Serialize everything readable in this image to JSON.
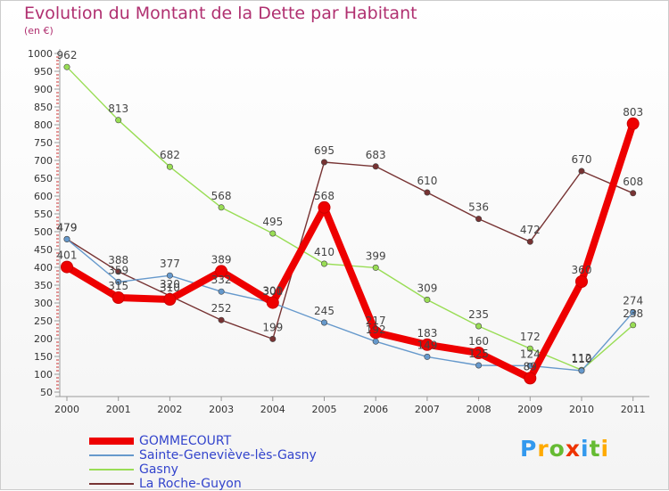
{
  "chart_data": {
    "type": "line",
    "title": "Evolution du Montant de la Dette par Habitant",
    "subtitle": "(en €)",
    "x": [
      "2000",
      "2001",
      "2002",
      "2003",
      "2004",
      "2005",
      "2006",
      "2007",
      "2008",
      "2009",
      "2010",
      "2011"
    ],
    "ylim": [
      50,
      1000
    ],
    "yticks": [
      50,
      100,
      150,
      200,
      250,
      300,
      350,
      400,
      450,
      500,
      550,
      600,
      650,
      700,
      750,
      800,
      850,
      900,
      950,
      1000
    ],
    "grid": false,
    "legend_position": "bottom-left",
    "series": [
      {
        "name": "GOMMECOURT",
        "color": "#ee0000",
        "values": [
          401,
          315,
          310,
          389,
          301,
          568,
          217,
          183,
          160,
          89,
          360,
          803
        ],
        "labels": [
          "401",
          "315",
          "310",
          "389",
          "301",
          "568",
          "217",
          "183",
          "160",
          "89",
          "360",
          "803"
        ]
      },
      {
        "name": "Sainte-Geneviève-lès-Gasny",
        "color": "#6699cc",
        "values": [
          479,
          359,
          377,
          332,
          300,
          245,
          192,
          149,
          125,
          124,
          110,
          274
        ],
        "labels": [
          "479",
          "359",
          "377",
          "332",
          "300",
          "245",
          "192",
          "149",
          "125",
          "124",
          "110",
          "274"
        ]
      },
      {
        "name": "Gasny",
        "color": "#99dd55",
        "values": [
          962,
          813,
          682,
          568,
          495,
          410,
          399,
          309,
          235,
          172,
          112,
          238
        ],
        "labels": [
          "962",
          "813",
          "682",
          "568",
          "495",
          "410",
          "399",
          "309",
          "235",
          "172",
          "112",
          "238"
        ]
      },
      {
        "name": "La Roche-Guyon",
        "color": "#773333",
        "values": [
          479,
          388,
          320,
          252,
          199,
          695,
          683,
          610,
          536,
          472,
          670,
          608
        ],
        "labels": [
          "479",
          "388",
          "320",
          "252",
          "199",
          "695",
          "683",
          "610",
          "536",
          "472",
          "670",
          "608"
        ]
      }
    ]
  },
  "logo": {
    "text": "Proxiti",
    "letters": [
      "P",
      "r",
      "o",
      "x",
      "i",
      "t",
      "i"
    ],
    "colors": [
      "#3399ee",
      "#ffaa00",
      "#66bb33",
      "#ee3300",
      "#3399ee",
      "#66bb33",
      "#ffaa00"
    ]
  }
}
